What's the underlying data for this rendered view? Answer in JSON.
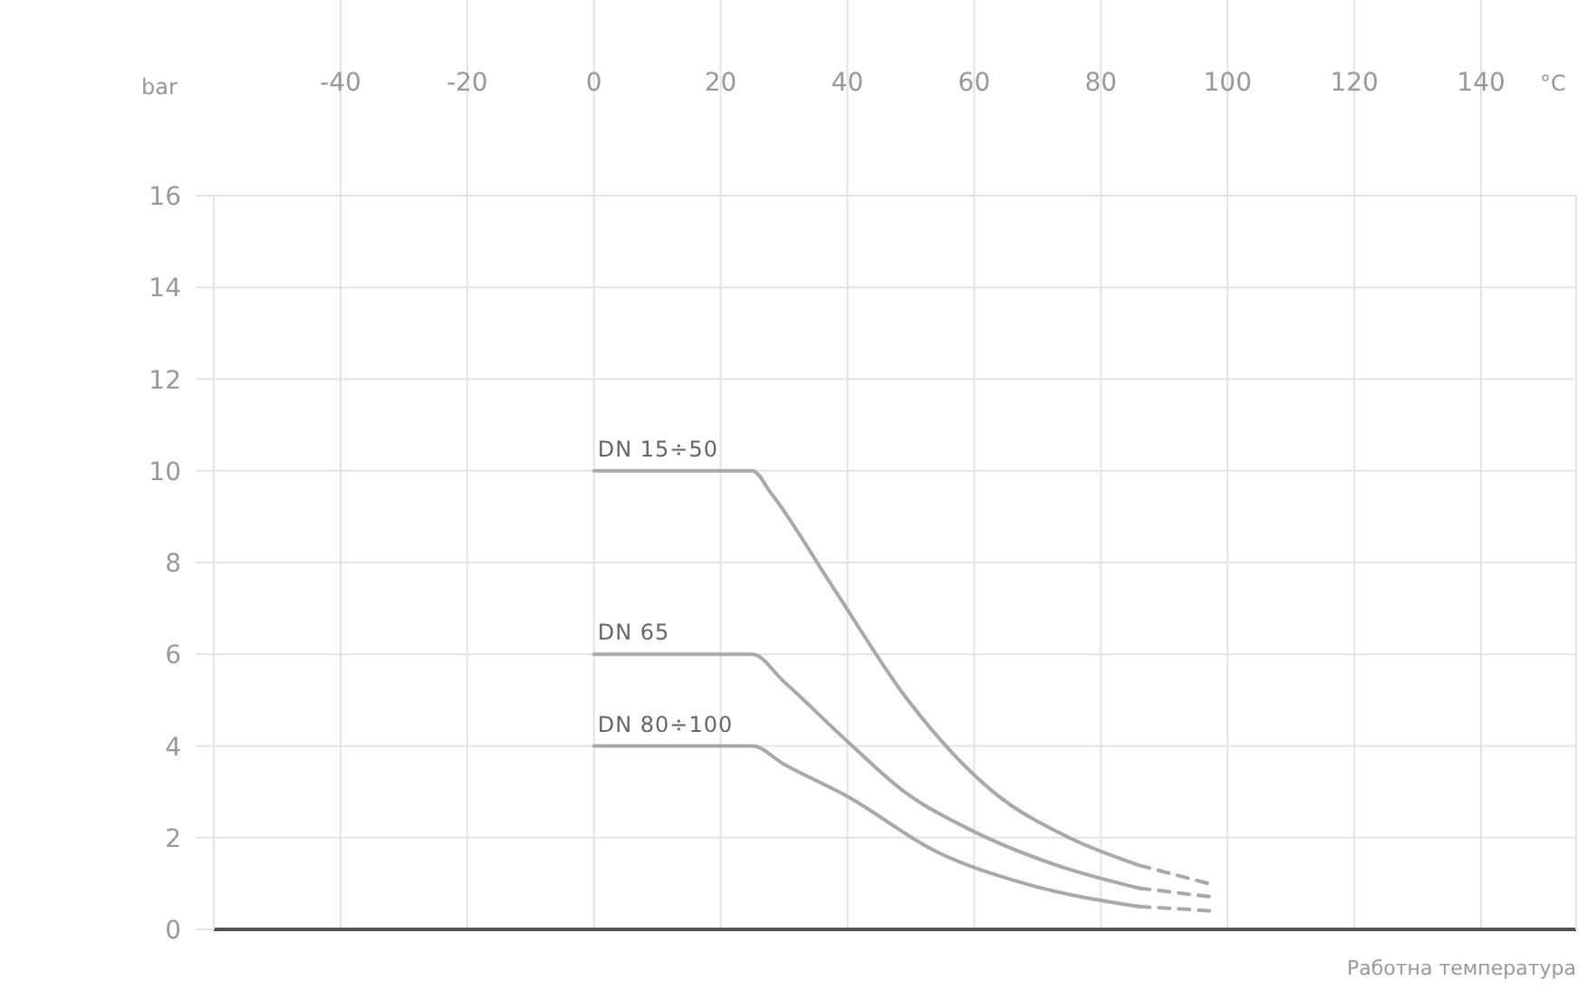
{
  "chart_data": {
    "type": "line",
    "xlabel": "Работна температура",
    "annotations": [
      "bar",
      "°C"
    ],
    "xlim": [
      -60,
      155
    ],
    "ylim": [
      0,
      16
    ],
    "xticks": [
      -40,
      -20,
      0,
      20,
      40,
      60,
      80,
      100,
      120,
      140
    ],
    "yticks": [
      0,
      2,
      4,
      6,
      8,
      10,
      12,
      14,
      16
    ],
    "grid": true,
    "marker": "none",
    "series": [
      {
        "name": "DN 15÷50",
        "color": "#a9a9a9",
        "line_style": "solid",
        "x": [
          0,
          25,
          28,
          38,
          49,
          63,
          75,
          86
        ],
        "values": [
          10,
          10,
          9.5,
          7.4,
          5.1,
          3,
          2,
          1.4
        ]
      },
      {
        "name": "DN 65",
        "color": "#a9a9a9",
        "line_style": "solid",
        "x": [
          0,
          25,
          30,
          40,
          49,
          59,
          73,
          86
        ],
        "values": [
          6,
          6,
          5.4,
          4.1,
          3,
          2.2,
          1.4,
          0.9
        ]
      },
      {
        "name": "DN 80÷100",
        "color": "#a9a9a9",
        "line_style": "solid",
        "x": [
          0,
          25,
          30,
          40,
          54,
          68,
          86
        ],
        "values": [
          4,
          4,
          3.6,
          2.9,
          1.7,
          1,
          0.5
        ]
      },
      {
        "color": "#a9a9a9",
        "line_style": "dashed",
        "x": [
          86,
          97
        ],
        "values": [
          1.4,
          1
        ]
      },
      {
        "color": "#a9a9a9",
        "line_style": "dashed",
        "x": [
          86,
          98
        ],
        "values": [
          0.9,
          0.7
        ]
      },
      {
        "color": "#a9a9a9",
        "line_style": "dashed",
        "x": [
          86,
          98
        ],
        "values": [
          0.5,
          0.4
        ]
      }
    ]
  }
}
